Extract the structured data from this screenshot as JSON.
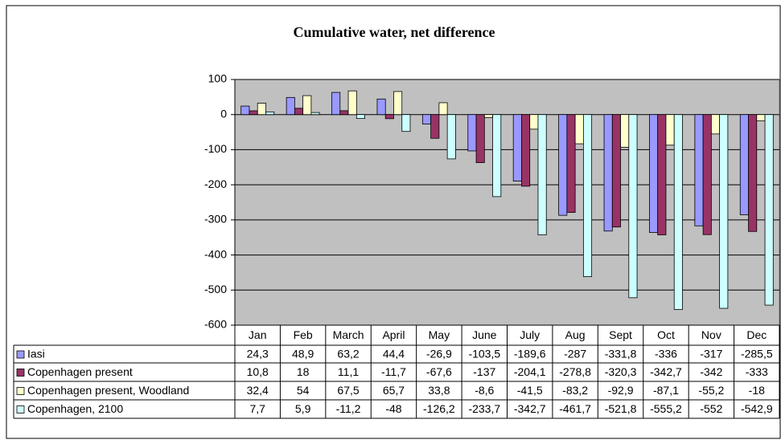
{
  "chart_data": {
    "type": "bar",
    "title": "Cumulative water, net difference",
    "categories": [
      "Jan",
      "Feb",
      "March",
      "April",
      "May",
      "June",
      "July",
      "Aug",
      "Sept",
      "Oct",
      "Nov",
      "Dec"
    ],
    "series": [
      {
        "name": "Iasi",
        "color": "#9999ff",
        "values": [
          24.3,
          48.9,
          63.2,
          44.4,
          -26.9,
          -103.5,
          -189.6,
          -287,
          -331.8,
          -336,
          -317,
          -285.5
        ],
        "value_labels": [
          "24,3",
          "48,9",
          "63,2",
          "44,4",
          "-26,9",
          "-103,5",
          "-189,6",
          "-287",
          "-331,8",
          "-336",
          "-317",
          "-285,5"
        ]
      },
      {
        "name": "Copenhagen present",
        "color": "#993366",
        "values": [
          10.8,
          18,
          11.1,
          -11.7,
          -67.6,
          -137,
          -204.1,
          -278.8,
          -320.3,
          -342.7,
          -342,
          -333
        ],
        "value_labels": [
          "10,8",
          "18",
          "11,1",
          "-11,7",
          "-67,6",
          "-137",
          "-204,1",
          "-278,8",
          "-320,3",
          "-342,7",
          "-342",
          "-333"
        ]
      },
      {
        "name": "Copenhagen present, Woodland",
        "color": "#ffffcc",
        "values": [
          32.4,
          54,
          67.5,
          65.7,
          33.8,
          -8.6,
          -41.5,
          -83.2,
          -92.9,
          -87.1,
          -55.2,
          -18
        ],
        "value_labels": [
          "32,4",
          "54",
          "67,5",
          "65,7",
          "33,8",
          "-8,6",
          "-41,5",
          "-83,2",
          "-92,9",
          "-87,1",
          "-55,2",
          "-18"
        ]
      },
      {
        "name": "Copenhagen, 2100",
        "color": "#ccffff",
        "values": [
          7.7,
          5.9,
          -11.2,
          -48,
          -126.2,
          -233.7,
          -342.7,
          -461.7,
          -521.8,
          -555.2,
          -552,
          -542.9
        ],
        "value_labels": [
          "7,7",
          "5,9",
          "-11,2",
          "-48",
          "-126,2",
          "-233,7",
          "-342,7",
          "-461,7",
          "-521,8",
          "-555,2",
          "-552",
          "-542,9"
        ]
      }
    ],
    "ylim": [
      -600,
      100
    ],
    "yticks": [
      100,
      0,
      -100,
      -200,
      -300,
      -400,
      -500,
      -600
    ],
    "grid": true
  }
}
